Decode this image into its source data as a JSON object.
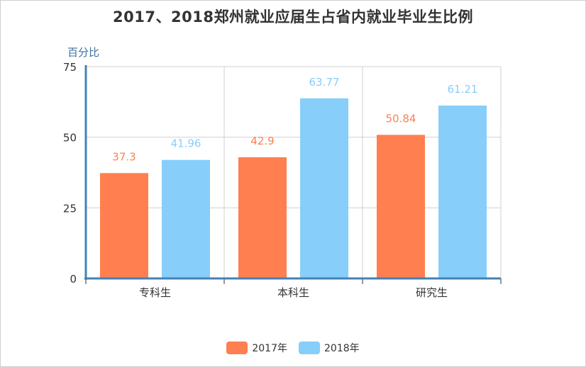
{
  "chart_data": {
    "type": "bar",
    "title": "2017、2018郑州就业应届生占省内就业毕业生比例",
    "ylabel": "百分比",
    "xlabel": "",
    "categories": [
      "专科生",
      "本科生",
      "研究生"
    ],
    "series": [
      {
        "name": "2017年",
        "values": [
          37.3,
          42.9,
          50.84
        ],
        "color": "#ff7f50"
      },
      {
        "name": "2018年",
        "values": [
          41.96,
          63.77,
          61.21
        ],
        "color": "#87cefa"
      }
    ],
    "ylim": [
      0,
      75
    ],
    "yticks": [
      "0",
      "25",
      "50",
      "75"
    ],
    "grid": true,
    "legend": "bottom"
  }
}
